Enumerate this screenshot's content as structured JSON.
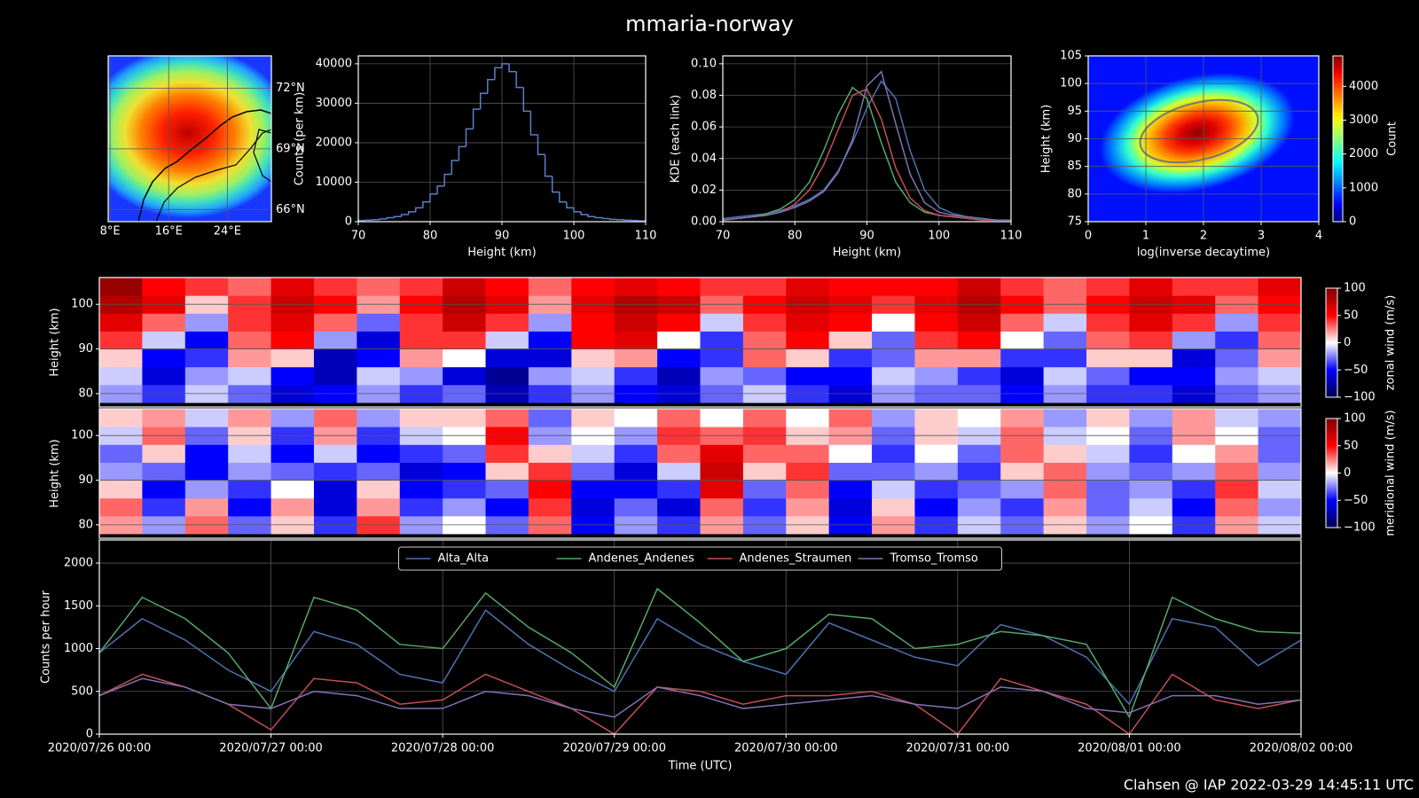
{
  "title": "mmaria-norway",
  "footer": "Clahsen @ IAP 2022-03-29 14:45:11 UTC",
  "chart_data": [
    {
      "type": "map",
      "xlim": [
        7.75,
        30
      ],
      "ylim": [
        65.4,
        73.6
      ],
      "xticks": [
        {
          "value": 8,
          "label": "8°E"
        },
        {
          "value": 16,
          "label": "16°E"
        },
        {
          "value": 24,
          "label": "24°E"
        }
      ],
      "yticks": [
        {
          "value": 66,
          "label": "66°N"
        },
        {
          "value": 69,
          "label": "69°N"
        },
        {
          "value": 72,
          "label": "72°N"
        }
      ],
      "grid": true
    },
    {
      "type": "histogram",
      "bins": [
        70,
        71,
        72,
        73,
        74,
        75,
        76,
        77,
        78,
        79,
        80,
        81,
        82,
        83,
        84,
        85,
        86,
        87,
        88,
        89,
        90,
        91,
        92,
        93,
        94,
        95,
        96,
        97,
        98,
        99,
        100,
        101,
        102,
        103,
        104,
        105,
        106,
        107,
        108,
        109,
        110
      ],
      "values": [
        300,
        400,
        500,
        700,
        1000,
        1300,
        1800,
        2500,
        3500,
        5000,
        7000,
        9000,
        12000,
        15500,
        19000,
        23500,
        28500,
        32500,
        36000,
        39000,
        40000,
        38000,
        34000,
        28000,
        22000,
        17000,
        11500,
        7500,
        5000,
        3500,
        2500,
        1800,
        1300,
        1000,
        800,
        600,
        500,
        400,
        300,
        200
      ],
      "color": "#5a7fc8",
      "xlim": [
        70,
        110
      ],
      "ylim": [
        0,
        42000
      ],
      "xticks": [
        70,
        80,
        90,
        100,
        110
      ],
      "yticks": [
        0,
        10000,
        20000,
        30000,
        40000
      ],
      "xlabel": "Height (km)",
      "ylabel": "Counts (per km)",
      "grid": true
    },
    {
      "type": "line",
      "x": [
        70,
        72,
        74,
        76,
        78,
        80,
        82,
        84,
        86,
        88,
        90,
        92,
        94,
        96,
        98,
        100,
        102,
        104,
        106,
        108,
        110
      ],
      "series": [
        {
          "name": "Alta_Alta",
          "color": "#4c72b0",
          "values": [
            0.002,
            0.003,
            0.004,
            0.005,
            0.007,
            0.01,
            0.014,
            0.02,
            0.032,
            0.05,
            0.072,
            0.089,
            0.078,
            0.045,
            0.02,
            0.009,
            0.005,
            0.003,
            0.002,
            0.001,
            0.001
          ]
        },
        {
          "name": "Andenes_Andenes",
          "color": "#55a868",
          "values": [
            0.001,
            0.002,
            0.003,
            0.005,
            0.008,
            0.014,
            0.025,
            0.045,
            0.068,
            0.085,
            0.078,
            0.05,
            0.025,
            0.012,
            0.006,
            0.004,
            0.003,
            0.002,
            0.001,
            0.001,
            0.001
          ]
        },
        {
          "name": "Andenes_Straumen",
          "color": "#c44e52",
          "values": [
            0.001,
            0.002,
            0.003,
            0.004,
            0.006,
            0.011,
            0.02,
            0.036,
            0.058,
            0.08,
            0.084,
            0.065,
            0.034,
            0.015,
            0.007,
            0.004,
            0.003,
            0.002,
            0.001,
            0.001,
            0.001
          ]
        },
        {
          "name": "Tromso_Tromso",
          "color": "#8172b2",
          "values": [
            0.001,
            0.002,
            0.003,
            0.004,
            0.006,
            0.009,
            0.013,
            0.019,
            0.031,
            0.052,
            0.086,
            0.095,
            0.062,
            0.03,
            0.012,
            0.006,
            0.004,
            0.003,
            0.002,
            0.001,
            0.001
          ]
        }
      ],
      "xlim": [
        70,
        110
      ],
      "ylim": [
        0,
        0.105
      ],
      "xticks": [
        70,
        80,
        90,
        100,
        110
      ],
      "yticks": [
        {
          "value": 0,
          "label": "0.00"
        },
        {
          "value": 0.02,
          "label": "0.02"
        },
        {
          "value": 0.04,
          "label": "0.04"
        },
        {
          "value": 0.06,
          "label": "0.06"
        },
        {
          "value": 0.08,
          "label": "0.08"
        },
        {
          "value": 0.1,
          "label": "0.10"
        }
      ],
      "xlabel": "Height (km)",
      "ylabel": "KDE (each link)",
      "grid": true
    },
    {
      "type": "hist2d",
      "xlim": [
        0,
        4
      ],
      "ylim": [
        75,
        105
      ],
      "xticks": [
        0,
        1,
        2,
        3,
        4
      ],
      "yticks": [
        75,
        80,
        85,
        90,
        95,
        100,
        105
      ],
      "clim": [
        0,
        4900
      ],
      "cticks": [
        0,
        1000,
        2000,
        3000,
        4000
      ],
      "colormap": "jet",
      "xlabel": "log(inverse decaytime)",
      "ylabel": "Height (km)",
      "clabel": "Count",
      "grid": true
    },
    {
      "type": "heatmap",
      "x": [
        "2020/07/26 00:00",
        "2020/07/26 06:00",
        "2020/07/26 12:00",
        "2020/07/26 18:00",
        "2020/07/27 00:00",
        "2020/07/27 06:00",
        "2020/07/27 12:00",
        "2020/07/27 18:00",
        "2020/07/28 00:00",
        "2020/07/28 06:00",
        "2020/07/28 12:00",
        "2020/07/28 18:00",
        "2020/07/29 00:00",
        "2020/07/29 06:00",
        "2020/07/29 12:00",
        "2020/07/29 18:00",
        "2020/07/30 00:00",
        "2020/07/30 06:00",
        "2020/07/30 12:00",
        "2020/07/30 18:00",
        "2020/07/31 00:00",
        "2020/07/31 06:00",
        "2020/07/31 12:00",
        "2020/07/31 18:00",
        "2020/08/01 00:00",
        "2020/08/01 06:00",
        "2020/08/01 12:00",
        "2020/08/01 18:00"
      ],
      "y": [
        80,
        84,
        88,
        92,
        96,
        100,
        104
      ],
      "z": [
        [
          -20,
          -40,
          -10,
          -30,
          -60,
          -50,
          -20,
          -40,
          -30,
          -70,
          -40,
          -20,
          -50,
          -60,
          -30,
          -10,
          -40,
          -60,
          -20,
          -30,
          -30,
          -50,
          -20,
          -40,
          -40,
          -60,
          -30,
          -20
        ],
        [
          -10,
          -60,
          -20,
          -10,
          -50,
          -70,
          -10,
          -20,
          -60,
          -80,
          -20,
          -10,
          -40,
          -70,
          -20,
          -30,
          -50,
          -50,
          -10,
          -20,
          -40,
          -60,
          -10,
          -30,
          -50,
          -50,
          -20,
          -10
        ],
        [
          10,
          -50,
          -40,
          20,
          10,
          -70,
          -50,
          20,
          0,
          -60,
          -60,
          10,
          20,
          -50,
          -40,
          30,
          10,
          -40,
          -30,
          20,
          20,
          -40,
          -40,
          10,
          10,
          -60,
          -30,
          20
        ],
        [
          40,
          -10,
          -50,
          30,
          50,
          -20,
          -60,
          40,
          40,
          -10,
          -50,
          50,
          60,
          0,
          -40,
          30,
          50,
          10,
          -30,
          40,
          50,
          0,
          -30,
          30,
          40,
          -20,
          -40,
          30
        ],
        [
          60,
          30,
          -20,
          40,
          60,
          30,
          -30,
          40,
          70,
          40,
          -20,
          50,
          70,
          50,
          -10,
          40,
          60,
          50,
          0,
          50,
          70,
          30,
          -10,
          40,
          60,
          40,
          -20,
          40
        ],
        [
          80,
          60,
          10,
          40,
          70,
          50,
          20,
          50,
          80,
          60,
          20,
          60,
          80,
          70,
          30,
          50,
          70,
          60,
          40,
          60,
          80,
          50,
          30,
          50,
          70,
          60,
          30,
          50
        ],
        [
          90,
          50,
          40,
          30,
          60,
          40,
          30,
          40,
          70,
          50,
          30,
          50,
          60,
          50,
          40,
          40,
          60,
          50,
          50,
          50,
          70,
          40,
          30,
          40,
          60,
          40,
          40,
          60
        ]
      ],
      "xlim": [
        "2020/07/26 00:00",
        "2020/08/02 00:00"
      ],
      "ylim": [
        77,
        106
      ],
      "yticks": [
        80,
        90,
        100
      ],
      "clim": [
        -100,
        100
      ],
      "cticks": [
        {
          "value": -100,
          "label": "−100"
        },
        {
          "value": -50,
          "label": "−50"
        },
        0,
        50,
        100
      ],
      "colormap": "seismic",
      "ylabel": "Height (km)",
      "clabel": "zonal wind (m/s)",
      "grid": true
    },
    {
      "type": "heatmap",
      "x": [
        "2020/07/26 00:00",
        "2020/07/26 06:00",
        "2020/07/26 12:00",
        "2020/07/26 18:00",
        "2020/07/27 00:00",
        "2020/07/27 06:00",
        "2020/07/27 12:00",
        "2020/07/27 18:00",
        "2020/07/28 00:00",
        "2020/07/28 06:00",
        "2020/07/28 12:00",
        "2020/07/28 18:00",
        "2020/07/29 00:00",
        "2020/07/29 06:00",
        "2020/07/29 12:00",
        "2020/07/29 18:00",
        "2020/07/30 00:00",
        "2020/07/30 06:00",
        "2020/07/30 12:00",
        "2020/07/30 18:00",
        "2020/07/31 00:00",
        "2020/07/31 06:00",
        "2020/07/31 12:00",
        "2020/07/31 18:00",
        "2020/08/01 00:00",
        "2020/08/01 06:00",
        "2020/08/01 12:00",
        "2020/08/01 18:00"
      ],
      "y": [
        80,
        84,
        88,
        92,
        96,
        100,
        104
      ],
      "z": [
        [
          20,
          -20,
          30,
          -30,
          10,
          -40,
          40,
          -20,
          0,
          -30,
          30,
          -50,
          -20,
          -40,
          20,
          -30,
          10,
          -50,
          20,
          -40,
          -10,
          -30,
          10,
          -20,
          0,
          -40,
          20,
          -10
        ],
        [
          30,
          -40,
          20,
          -50,
          20,
          -60,
          20,
          -40,
          -20,
          -50,
          40,
          -60,
          -30,
          -60,
          30,
          -40,
          20,
          -60,
          10,
          -50,
          -20,
          -40,
          20,
          -30,
          -10,
          -50,
          30,
          -20
        ],
        [
          10,
          -50,
          -20,
          -40,
          0,
          -60,
          10,
          -50,
          -40,
          -30,
          50,
          -50,
          -50,
          -40,
          60,
          -30,
          30,
          -50,
          -10,
          -40,
          -30,
          -20,
          30,
          -30,
          -20,
          -40,
          40,
          -10
        ],
        [
          -20,
          -30,
          -50,
          -20,
          -30,
          -40,
          -30,
          -60,
          -50,
          10,
          40,
          -30,
          -60,
          -10,
          70,
          10,
          40,
          -30,
          -30,
          -20,
          -40,
          10,
          30,
          -20,
          -30,
          -20,
          30,
          -20
        ],
        [
          -30,
          10,
          -50,
          -10,
          -50,
          -10,
          -50,
          -40,
          -30,
          40,
          10,
          -10,
          -40,
          30,
          60,
          30,
          30,
          0,
          -40,
          0,
          -30,
          30,
          10,
          -10,
          -40,
          0,
          20,
          -30
        ],
        [
          -10,
          30,
          -30,
          10,
          -40,
          20,
          -40,
          -10,
          0,
          50,
          -20,
          0,
          -20,
          40,
          30,
          40,
          10,
          20,
          -30,
          10,
          -10,
          30,
          -10,
          0,
          -30,
          20,
          0,
          -30
        ],
        [
          10,
          20,
          -10,
          20,
          -20,
          30,
          -20,
          10,
          10,
          30,
          -30,
          10,
          0,
          30,
          0,
          30,
          0,
          30,
          -20,
          10,
          0,
          20,
          -20,
          10,
          -20,
          20,
          -10,
          -20
        ]
      ],
      "xlim": [
        "2020/07/26 00:00",
        "2020/08/02 00:00"
      ],
      "ylim": [
        77,
        106
      ],
      "yticks": [
        80,
        90,
        100
      ],
      "clim": [
        -100,
        100
      ],
      "cticks": [
        {
          "value": -100,
          "label": "−100"
        },
        {
          "value": -50,
          "label": "−50"
        },
        0,
        50,
        100
      ],
      "colormap": "seismic",
      "ylabel": "Height (km)",
      "clabel": "meridional wind (m/s)",
      "grid": true
    },
    {
      "type": "line",
      "x": [
        "2020/07/26 00:00",
        "2020/07/26 06:00",
        "2020/07/26 12:00",
        "2020/07/26 18:00",
        "2020/07/27 00:00",
        "2020/07/27 06:00",
        "2020/07/27 12:00",
        "2020/07/27 18:00",
        "2020/07/28 00:00",
        "2020/07/28 06:00",
        "2020/07/28 12:00",
        "2020/07/28 18:00",
        "2020/07/29 00:00",
        "2020/07/29 06:00",
        "2020/07/29 12:00",
        "2020/07/29 18:00",
        "2020/07/30 00:00",
        "2020/07/30 06:00",
        "2020/07/30 12:00",
        "2020/07/30 18:00",
        "2020/07/31 00:00",
        "2020/07/31 06:00",
        "2020/07/31 12:00",
        "2020/07/31 18:00",
        "2020/08/01 00:00",
        "2020/08/01 06:00",
        "2020/08/01 12:00",
        "2020/08/01 18:00",
        "2020/08/02 00:00"
      ],
      "series": [
        {
          "name": "Alta_Alta",
          "color": "#4c72b0",
          "values": [
            950,
            1350,
            1100,
            750,
            500,
            1200,
            1050,
            700,
            600,
            1450,
            1050,
            750,
            500,
            1350,
            1050,
            850,
            700,
            1300,
            1100,
            900,
            800,
            1280,
            1150,
            900,
            350,
            1350,
            1250,
            800,
            1100
          ]
        },
        {
          "name": "Andenes_Andenes",
          "color": "#55a868",
          "values": [
            950,
            1600,
            1350,
            950,
            300,
            1600,
            1450,
            1050,
            1000,
            1650,
            1250,
            950,
            550,
            1700,
            1300,
            850,
            1000,
            1400,
            1350,
            1000,
            1050,
            1200,
            1150,
            1050,
            200,
            1600,
            1350,
            1200,
            1180
          ]
        },
        {
          "name": "Andenes_Straumen",
          "color": "#c44e52",
          "values": [
            450,
            700,
            550,
            350,
            50,
            650,
            600,
            350,
            400,
            700,
            500,
            300,
            0,
            550,
            500,
            350,
            450,
            450,
            500,
            350,
            0,
            650,
            500,
            350,
            0,
            700,
            400,
            300,
            400
          ]
        },
        {
          "name": "Tromso_Tromso",
          "color": "#8172b2",
          "values": [
            450,
            650,
            550,
            350,
            300,
            500,
            450,
            300,
            300,
            500,
            450,
            300,
            200,
            550,
            450,
            300,
            350,
            400,
            450,
            350,
            300,
            550,
            500,
            300,
            250,
            450,
            450,
            350,
            400
          ]
        }
      ],
      "xlim": [
        "2020/07/26 00:00",
        "2020/08/02 00:00"
      ],
      "ylim": [
        0,
        2270
      ],
      "xticks": [
        "2020/07/26 00:00",
        "2020/07/27 00:00",
        "2020/07/28 00:00",
        "2020/07/29 00:00",
        "2020/07/30 00:00",
        "2020/07/31 00:00",
        "2020/08/01 00:00",
        "2020/08/02 00:00"
      ],
      "yticks": [
        0,
        500,
        1000,
        1500,
        2000
      ],
      "xlabel": "Time (UTC)",
      "ylabel": "Counts per hour",
      "legend": "upper center",
      "grid": true
    }
  ]
}
